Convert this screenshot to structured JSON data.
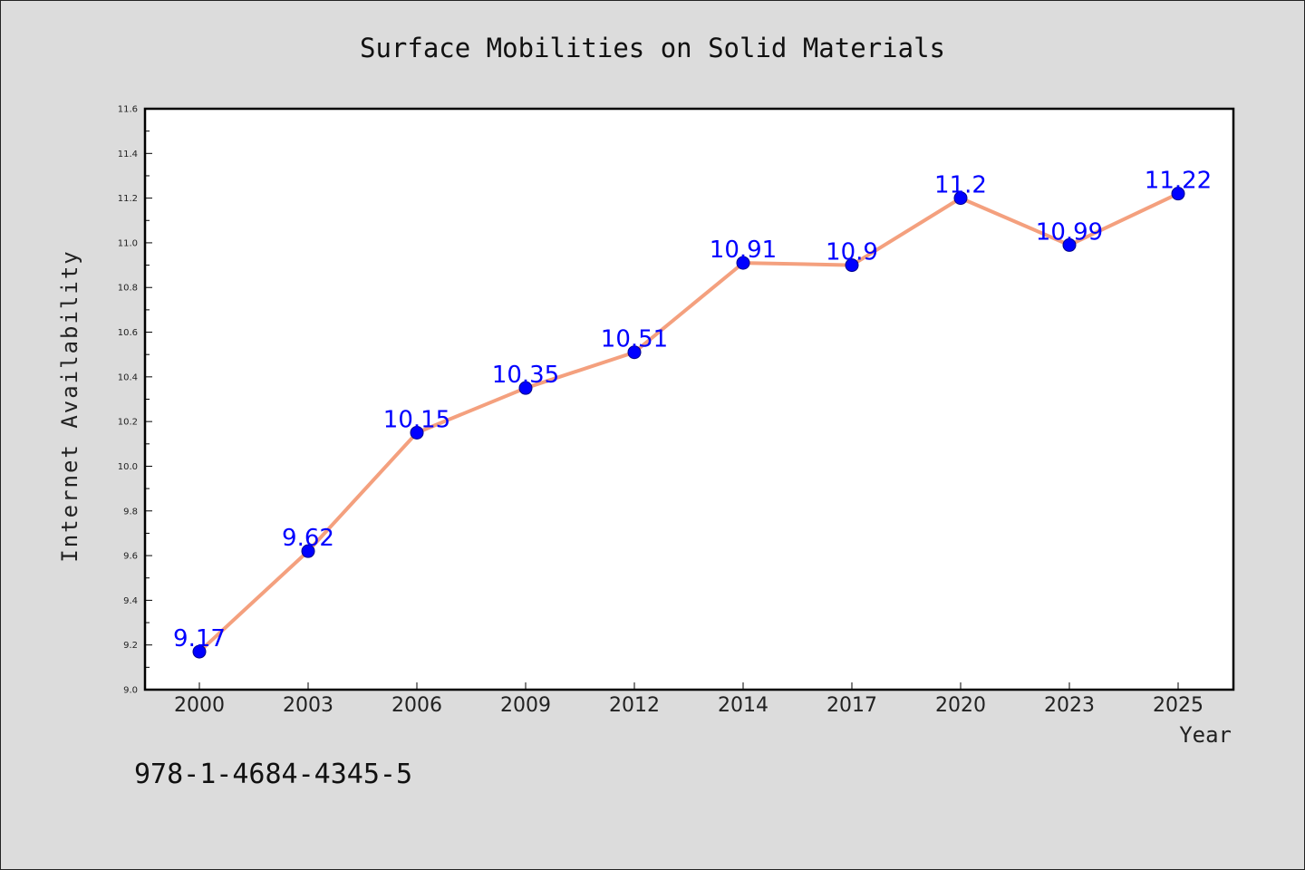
{
  "colors": {
    "background": "#dcdcdc",
    "plot_background": "#ffffff",
    "line": "#f4a07e",
    "marker_fill": "#0000ff",
    "marker_edge": "#00008b",
    "data_label": "#0000ff"
  },
  "footer_text": "978-1-4684-4345-5",
  "chart_data": {
    "type": "line",
    "title": "Surface Mobilities on Solid Materials",
    "xlabel": "Year",
    "ylabel": "Internet Availability",
    "categories": [
      "2000",
      "2003",
      "2006",
      "2009",
      "2012",
      "2014",
      "2017",
      "2020",
      "2023",
      "2025"
    ],
    "series": [
      {
        "values": [
          9.17,
          9.62,
          10.15,
          10.35,
          10.51,
          10.91,
          10.9,
          11.2,
          10.99,
          11.22
        ],
        "data_labels": [
          "9.17",
          "9.62",
          "10.15",
          "10.35",
          "10.51",
          "10.91",
          "10.9",
          "11.2",
          "10.99",
          "11.22"
        ]
      }
    ],
    "ylim": [
      9.0,
      11.6
    ],
    "yticks": [
      "9.0",
      "9.2",
      "9.4",
      "9.6",
      "9.8",
      "10.0",
      "10.2",
      "10.4",
      "10.6",
      "10.8",
      "11.0",
      "11.2",
      "11.4",
      "11.6"
    ],
    "grid": false,
    "legend": "none"
  }
}
